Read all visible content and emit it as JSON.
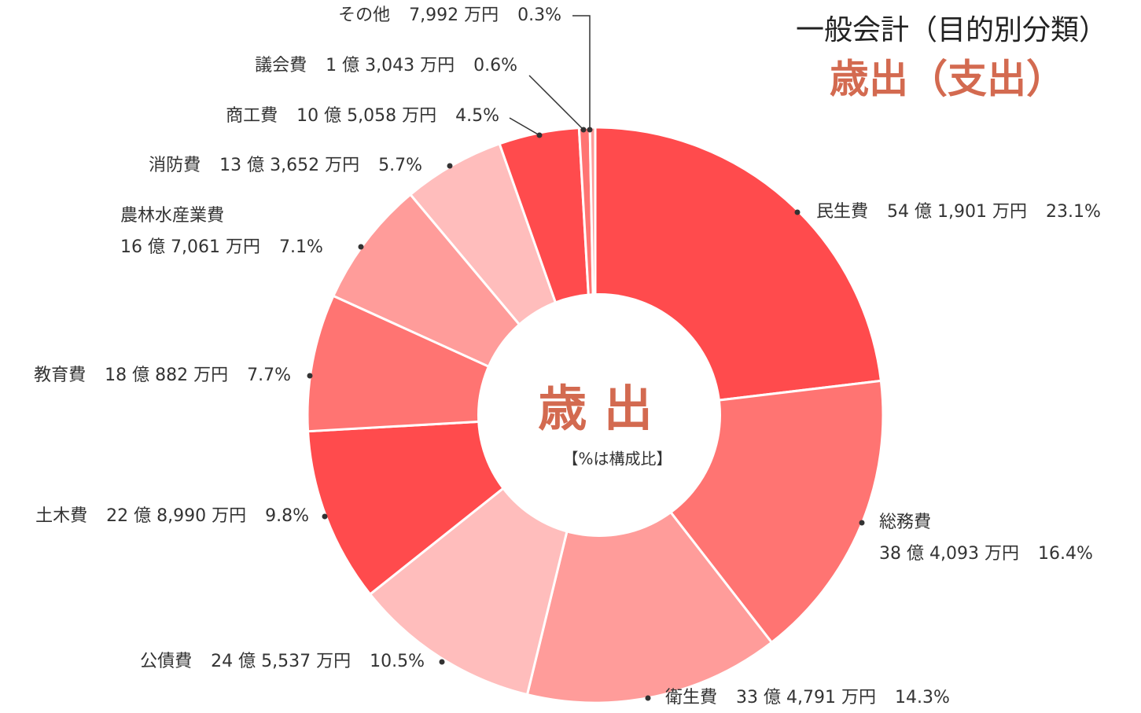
{
  "chart_data": {
    "type": "donut",
    "title": "一般会計（目的別分類）",
    "subtitle": "歳出（支出）",
    "center_label": "歳 出",
    "center_note": "【%は構成比】",
    "categories": [
      "民生費",
      "総務費",
      "衛生費",
      "公債費",
      "土木費",
      "教育費",
      "農林水産業費",
      "消防費",
      "商工費",
      "議会費",
      "その他"
    ],
    "amounts": [
      "54 億 1,901 万円",
      "38 億 4,093 万円",
      "33 億 4,791 万円",
      "24 億 5,537 万円",
      "22 億 8,990 万円",
      "18 億 882 万円",
      "16 億 7,061 万円",
      "13 億 3,652 万円",
      "10 億 5,058 万円",
      "1 億 3,043 万円",
      "7,992 万円"
    ],
    "values": [
      23.1,
      16.4,
      14.3,
      10.5,
      9.8,
      7.7,
      7.1,
      5.7,
      4.5,
      0.6,
      0.3
    ],
    "value_labels": [
      "23.1%",
      "16.4%",
      "14.3%",
      "10.5%",
      "9.8%",
      "7.7%",
      "7.1%",
      "5.7%",
      "4.5%",
      "0.6%",
      "0.3%"
    ],
    "colors": [
      "#ff4b4d",
      "#ff7472",
      "#ff9c9a",
      "#ffbdbc",
      "#ff4b4d",
      "#ff7472",
      "#ff9c9a",
      "#ffbdbc",
      "#ff4b4d",
      "#ff7472",
      "#ff9c9a"
    ]
  }
}
